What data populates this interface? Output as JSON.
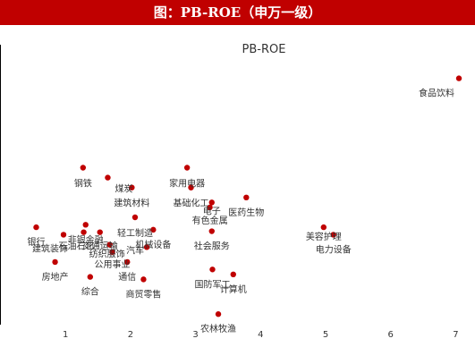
{
  "header": {
    "title": "图：PB-ROE（申万一级）"
  },
  "colors": {
    "header_bg": "#c00000",
    "point": "#c00000",
    "text": "#333333",
    "axis": "#000000"
  },
  "chart_data": {
    "type": "scatter",
    "title": "PB-ROE",
    "xlabel": "",
    "ylabel": "",
    "xlim": [
      0,
      7.3
    ],
    "x_ticks": [
      1,
      2,
      3,
      4,
      5,
      6,
      7
    ],
    "grid": false,
    "legend": "none",
    "points": [
      {
        "label": "食品饮料",
        "x": 7.05,
        "y": 0.78
      },
      {
        "label": "钢铁",
        "x": 1.27,
        "y": 0.6
      },
      {
        "label": "煤炭",
        "x": 1.65,
        "y": 0.58
      },
      {
        "label": "建筑材料",
        "x": 2.02,
        "y": 0.56
      },
      {
        "label": "家用电器",
        "x": 2.87,
        "y": 0.6
      },
      {
        "label": "基础化工",
        "x": 2.93,
        "y": 0.56
      },
      {
        "label": "电子",
        "x": 3.25,
        "y": 0.53
      },
      {
        "label": "医药生物",
        "x": 3.78,
        "y": 0.54
      },
      {
        "label": "有色金属",
        "x": 3.22,
        "y": 0.52
      },
      {
        "label": "轻工制造",
        "x": 2.07,
        "y": 0.5
      },
      {
        "label": "银行",
        "x": 0.55,
        "y": 0.48
      },
      {
        "label": "非银金融",
        "x": 1.31,
        "y": 0.485
      },
      {
        "label": "建筑装饰",
        "x": 0.97,
        "y": 0.465
      },
      {
        "label": "石油石化",
        "x": 1.28,
        "y": 0.47
      },
      {
        "label": "交通运输",
        "x": 1.53,
        "y": 0.47
      },
      {
        "label": "机械设备",
        "x": 2.35,
        "y": 0.475
      },
      {
        "label": "社会服务",
        "x": 3.25,
        "y": 0.472
      },
      {
        "label": "美容护理",
        "x": 4.97,
        "y": 0.48
      },
      {
        "label": "电力设备",
        "x": 5.12,
        "y": 0.465
      },
      {
        "label": "纺织服饰",
        "x": 1.68,
        "y": 0.445
      },
      {
        "label": "汽车",
        "x": 2.25,
        "y": 0.44
      },
      {
        "label": "公用事业",
        "x": 1.72,
        "y": 0.43
      },
      {
        "label": "房地产",
        "x": 0.84,
        "y": 0.41
      },
      {
        "label": "通信",
        "x": 1.95,
        "y": 0.41
      },
      {
        "label": "综合",
        "x": 1.38,
        "y": 0.38
      },
      {
        "label": "商贸零售",
        "x": 2.2,
        "y": 0.375
      },
      {
        "label": "国防军工",
        "x": 3.26,
        "y": 0.395
      },
      {
        "label": "计算机",
        "x": 3.58,
        "y": 0.385
      },
      {
        "label": "农林牧渔",
        "x": 3.35,
        "y": 0.305
      }
    ]
  }
}
